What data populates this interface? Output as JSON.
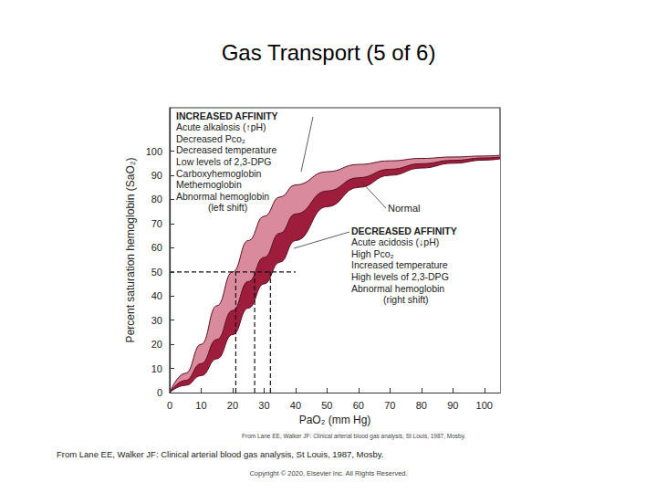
{
  "chart_data": {
    "type": "line",
    "title": "Gas Transport (5 of 6)",
    "xlabel": "PaO₂ (mm Hg)",
    "ylabel": "Percent saturation hemoglobin (SaO₂)",
    "x": [
      0,
      5,
      10,
      15,
      20,
      25,
      30,
      35,
      40,
      50,
      60,
      70,
      80,
      90,
      100,
      105
    ],
    "series": [
      {
        "color": "#d98a9c",
        "values": [
          0,
          8,
          20,
          36,
          50,
          63,
          73,
          81,
          86,
          91.5,
          94.5,
          96,
          97,
          97.6,
          98,
          98.3
        ]
      },
      {
        "color": "#9e1c3c",
        "values": [
          0,
          5,
          12,
          22,
          34,
          46,
          56,
          66,
          74,
          83.5,
          89,
          92.5,
          94.8,
          96.2,
          97.2,
          97.6
        ]
      },
      {
        "color": "#ffffff",
        "values": [
          0,
          3,
          7,
          14,
          24,
          35,
          45,
          54,
          63,
          77,
          85,
          90,
          93,
          95,
          96.3,
          96.8
        ]
      }
    ],
    "xlim": [
      0,
      105
    ],
    "xticks": [
      0,
      10,
      20,
      30,
      40,
      50,
      60,
      70,
      80,
      90,
      100
    ],
    "ylim": [
      0,
      118
    ],
    "yticks": [
      0,
      10,
      20,
      30,
      40,
      50,
      60,
      70,
      80,
      90,
      100
    ],
    "grid": false,
    "reference_lines": {
      "saturation": 50,
      "x_end": 40,
      "p50": [
        21,
        27,
        32
      ]
    },
    "annotations": {
      "increased": [
        "INCREASED AFFINITY",
        "Acute alkalosis (↑pH)",
        "Decreased Pco₂",
        "Decreased temperature",
        "Low levels of 2,3-DPG",
        "Carboxyhemoglobin",
        "Methemoglobin",
        "Abnormal hemoglobin",
        "(left shift)"
      ],
      "normal": "Normal",
      "decreased": [
        "DECREASED AFFINITY",
        "Acute acidosis (↓pH)",
        "High Pco₂",
        "Increased temperature",
        "High levels of 2,3-DPG",
        "Abnormal hemoglobin",
        "(right shift)"
      ]
    },
    "figure_source": "From Lane EE, Walker JF: Clinical arterial blood gas analysis, St Louis, 1987, Mosby.",
    "caption": "From Lane EE, Walker JF: Clinical arterial blood gas analysis, St Louis, 1987, Mosby.",
    "copyright": "Copyright © 2020, Elsevier Inc. All Rights Reserved."
  }
}
